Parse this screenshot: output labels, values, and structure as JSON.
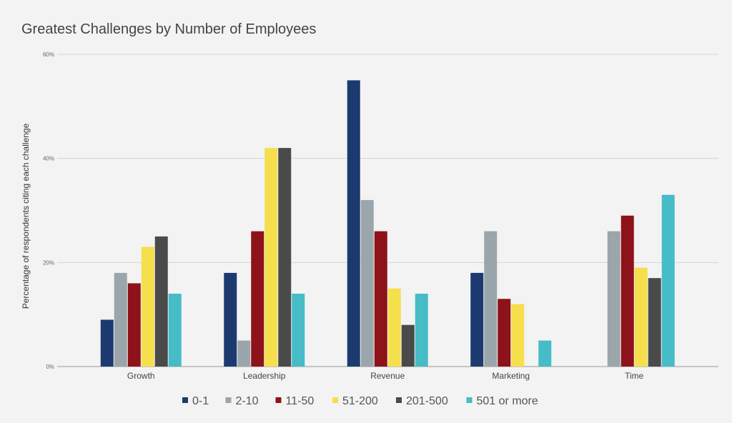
{
  "chart_data": {
    "type": "bar",
    "title": "Greatest Challenges by Number of Employees",
    "xlabel": "",
    "ylabel": "Percentage of respondents citing each challenge",
    "ylim": [
      0,
      60
    ],
    "yticks": [
      "0%",
      "20%",
      "40%",
      "60%"
    ],
    "ytick_values": [
      0,
      20,
      40,
      60
    ],
    "grid": true,
    "legend_position": "bottom",
    "categories": [
      "Growth",
      "Leadership",
      "Revenue",
      "Marketing",
      "Time"
    ],
    "series": [
      {
        "name": "0-1",
        "color": "#1c3a70",
        "values": [
          9,
          18,
          55,
          18,
          0
        ]
      },
      {
        "name": "2-10",
        "color": "#9aa6ab",
        "values": [
          18,
          5,
          32,
          26,
          26
        ]
      },
      {
        "name": "11-50",
        "color": "#8e1219",
        "values": [
          16,
          26,
          26,
          13,
          29
        ]
      },
      {
        "name": "51-200",
        "color": "#f5df4d",
        "values": [
          23,
          42,
          15,
          12,
          19
        ]
      },
      {
        "name": "201-500",
        "color": "#4a4a4a",
        "values": [
          25,
          42,
          8,
          0,
          17
        ]
      },
      {
        "name": "501 or more",
        "color": "#45bcc6",
        "values": [
          14,
          14,
          14,
          5,
          33
        ]
      }
    ]
  }
}
